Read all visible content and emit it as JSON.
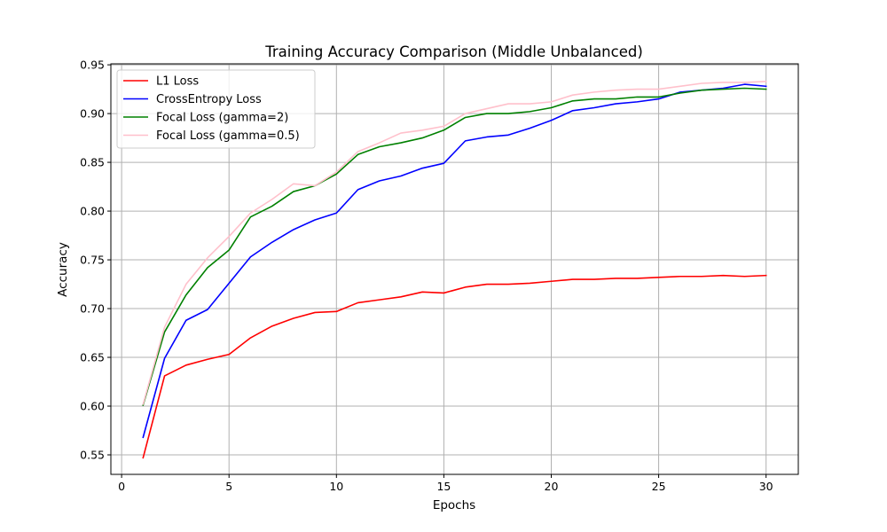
{
  "chart_data": {
    "type": "line",
    "title": "Training Accuracy Comparison (Middle Unbalanced)",
    "xlabel": "Epochs",
    "ylabel": "Accuracy",
    "xlim": [
      -0.5,
      31.5
    ],
    "ylim": [
      0.53,
      0.951
    ],
    "xticks": [
      0,
      5,
      10,
      15,
      20,
      25,
      30
    ],
    "xtick_labels": [
      "0",
      "5",
      "10",
      "15",
      "20",
      "25",
      "30"
    ],
    "yticks": [
      0.55,
      0.6,
      0.65,
      0.7,
      0.75,
      0.8,
      0.85,
      0.9,
      0.95
    ],
    "ytick_labels": [
      "0.55",
      "0.60",
      "0.65",
      "0.70",
      "0.75",
      "0.80",
      "0.85",
      "0.90",
      "0.95"
    ],
    "grid": true,
    "legend_position": "top-left",
    "x": [
      1,
      2,
      3,
      4,
      5,
      6,
      7,
      8,
      9,
      10,
      11,
      12,
      13,
      14,
      15,
      16,
      17,
      18,
      19,
      20,
      21,
      22,
      23,
      24,
      25,
      26,
      27,
      28,
      29,
      30
    ],
    "series": [
      {
        "name": "L1 Loss",
        "color": "#ff0000",
        "values": [
          0.547,
          0.631,
          0.642,
          0.648,
          0.653,
          0.67,
          0.682,
          0.69,
          0.696,
          0.697,
          0.706,
          0.709,
          0.712,
          0.717,
          0.716,
          0.722,
          0.725,
          0.725,
          0.726,
          0.728,
          0.73,
          0.73,
          0.731,
          0.731,
          0.732,
          0.733,
          0.733,
          0.734,
          0.733,
          0.734
        ]
      },
      {
        "name": "CrossEntropy Loss",
        "color": "#0000ff",
        "values": [
          0.568,
          0.649,
          0.688,
          0.699,
          0.726,
          0.753,
          0.768,
          0.781,
          0.791,
          0.798,
          0.822,
          0.831,
          0.836,
          0.844,
          0.849,
          0.872,
          0.876,
          0.878,
          0.885,
          0.893,
          0.903,
          0.906,
          0.91,
          0.912,
          0.915,
          0.922,
          0.924,
          0.926,
          0.93,
          0.928
        ]
      },
      {
        "name": "Focal Loss (gamma=2)",
        "color": "#008000",
        "values": [
          0.601,
          0.676,
          0.714,
          0.742,
          0.76,
          0.794,
          0.805,
          0.82,
          0.826,
          0.838,
          0.858,
          0.866,
          0.87,
          0.875,
          0.883,
          0.896,
          0.9,
          0.9,
          0.902,
          0.906,
          0.913,
          0.915,
          0.915,
          0.917,
          0.917,
          0.921,
          0.924,
          0.925,
          0.926,
          0.925
        ]
      },
      {
        "name": "Focal Loss (gamma=0.5)",
        "color": "#ffc0cb",
        "values": [
          0.602,
          0.681,
          0.725,
          0.752,
          0.774,
          0.798,
          0.812,
          0.828,
          0.826,
          0.84,
          0.861,
          0.87,
          0.88,
          0.883,
          0.887,
          0.9,
          0.905,
          0.91,
          0.91,
          0.912,
          0.919,
          0.922,
          0.924,
          0.925,
          0.925,
          0.928,
          0.931,
          0.932,
          0.932,
          0.933
        ]
      }
    ]
  }
}
